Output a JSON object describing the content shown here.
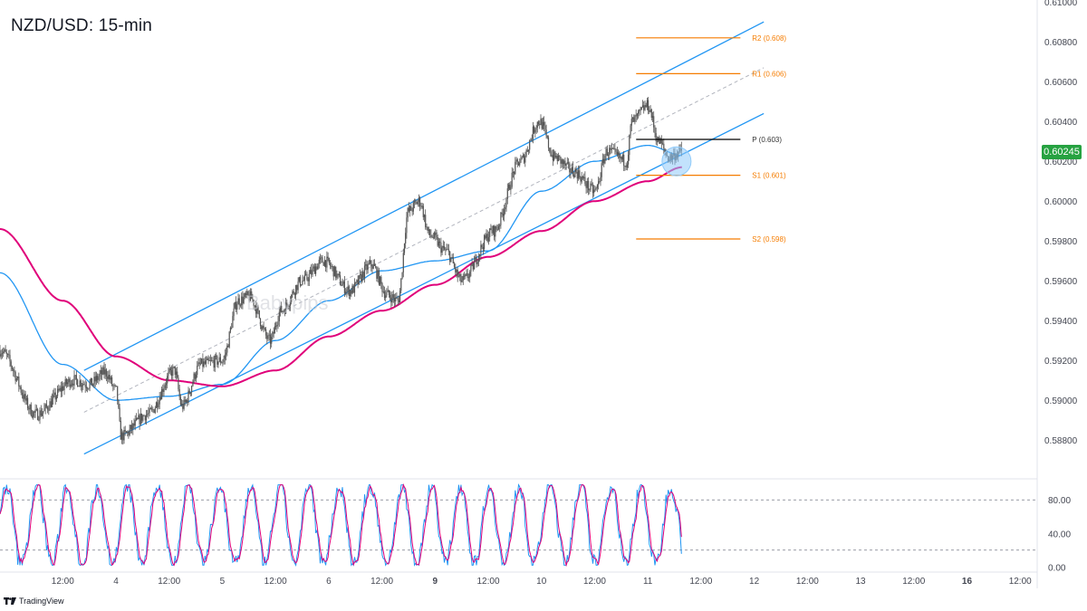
{
  "title": "NZD/USD: 15-min",
  "watermark": "Babypips",
  "platform": "TradingView",
  "current_price_label": "0.60245",
  "colors": {
    "candles": "#555555",
    "ema_fast": "#2196f3",
    "ema_slow": "#e0007a",
    "channel": "#2196f3",
    "pivot": "#000000",
    "sr": "#f57c00",
    "stoch_k": "#2196f3",
    "stoch_d": "#e0007a",
    "price_tag": "#26a241",
    "highlight": "#90caf9"
  },
  "chart_data": [
    {
      "type": "candlestick",
      "title": "NZD/USD: 15-min",
      "x_ticks": [
        {
          "t": 0.5,
          "label": "12:00"
        },
        {
          "t": 1,
          "label": "4"
        },
        {
          "t": 1.5,
          "label": "12:00"
        },
        {
          "t": 2,
          "label": "5"
        },
        {
          "t": 2.5,
          "label": "12:00"
        },
        {
          "t": 3,
          "label": "6"
        },
        {
          "t": 3.5,
          "label": "12:00"
        },
        {
          "t": 4,
          "label": "9"
        },
        {
          "t": 4.5,
          "label": "12:00"
        },
        {
          "t": 5,
          "label": "10"
        },
        {
          "t": 5.5,
          "label": "12:00"
        },
        {
          "t": 6,
          "label": "11"
        },
        {
          "t": 6.5,
          "label": "12:00"
        },
        {
          "t": 7,
          "label": "12"
        },
        {
          "t": 7.5,
          "label": "12:00"
        },
        {
          "t": 8,
          "label": "13"
        },
        {
          "t": 8.5,
          "label": "12:00"
        },
        {
          "t": 9,
          "label": "16"
        },
        {
          "t": 9.5,
          "label": "12:00"
        }
      ],
      "bold_day_labels": [
        "9",
        "16"
      ],
      "x_range": [
        -0.09,
        9.66
      ],
      "y_range": [
        0.5861,
        0.6101
      ],
      "y_ticks": [
        "0.61000",
        "0.60800",
        "0.60600",
        "0.60400",
        "0.60200",
        "0.60000",
        "0.59800",
        "0.59600",
        "0.59400",
        "0.59200",
        "0.59000",
        "0.58800"
      ],
      "current_price": 0.60245,
      "price_anchors": [
        [
          -0.09,
          0.5925
        ],
        [
          0.25,
          0.5893
        ],
        [
          0.6,
          0.591
        ],
        [
          0.75,
          0.5908
        ],
        [
          0.9,
          0.5914
        ],
        [
          1.0,
          0.5905
        ],
        [
          1.05,
          0.5882
        ],
        [
          1.3,
          0.5893
        ],
        [
          1.55,
          0.5915
        ],
        [
          1.62,
          0.5897
        ],
        [
          1.8,
          0.5918
        ],
        [
          2.0,
          0.592
        ],
        [
          2.15,
          0.595
        ],
        [
          2.25,
          0.5952
        ],
        [
          2.45,
          0.593
        ],
        [
          2.55,
          0.5945
        ],
        [
          2.75,
          0.596
        ],
        [
          2.95,
          0.597
        ],
        [
          3.2,
          0.5955
        ],
        [
          3.4,
          0.5968
        ],
        [
          3.55,
          0.5953
        ],
        [
          3.65,
          0.595
        ],
        [
          3.75,
          0.5995
        ],
        [
          3.85,
          0.6
        ],
        [
          3.95,
          0.5983
        ],
        [
          4.1,
          0.5975
        ],
        [
          4.25,
          0.596
        ],
        [
          4.55,
          0.5985
        ],
        [
          4.8,
          0.602
        ],
        [
          4.98,
          0.604
        ],
        [
          5.12,
          0.6022
        ],
        [
          5.3,
          0.6015
        ],
        [
          5.5,
          0.6005
        ],
        [
          5.62,
          0.6025
        ],
        [
          5.8,
          0.602
        ],
        [
          5.85,
          0.604
        ],
        [
          6.0,
          0.6048
        ],
        [
          6.1,
          0.603
        ],
        [
          6.2,
          0.6022
        ],
        [
          6.32,
          0.6025
        ]
      ],
      "channel": {
        "upper": [
          [
            0.7,
            0.5915
          ],
          [
            7.09,
            0.609
          ]
        ],
        "lower": [
          [
            0.7,
            0.5873
          ],
          [
            7.09,
            0.6044
          ]
        ],
        "middle": [
          [
            0.7,
            0.5894
          ],
          [
            7.09,
            0.6067
          ]
        ]
      },
      "ema_fast_anchors": [
        [
          -0.09,
          0.5964
        ],
        [
          0.5,
          0.5918
        ],
        [
          1.0,
          0.59
        ],
        [
          1.5,
          0.5902
        ],
        [
          2.0,
          0.5908
        ],
        [
          2.5,
          0.593
        ],
        [
          3.0,
          0.595
        ],
        [
          3.5,
          0.5965
        ],
        [
          4.0,
          0.597
        ],
        [
          4.5,
          0.5975
        ],
        [
          5.0,
          0.6005
        ],
        [
          5.5,
          0.602
        ],
        [
          6.0,
          0.6028
        ],
        [
          6.32,
          0.6023
        ]
      ],
      "ema_slow_anchors": [
        [
          -0.09,
          0.5986
        ],
        [
          0.5,
          0.595
        ],
        [
          1.0,
          0.5922
        ],
        [
          1.5,
          0.591
        ],
        [
          2.0,
          0.5907
        ],
        [
          2.5,
          0.5915
        ],
        [
          3.0,
          0.5932
        ],
        [
          3.5,
          0.5945
        ],
        [
          4.0,
          0.5958
        ],
        [
          4.5,
          0.5972
        ],
        [
          5.0,
          0.5985
        ],
        [
          5.5,
          0.6
        ],
        [
          6.0,
          0.601
        ],
        [
          6.32,
          0.6017
        ]
      ],
      "pivots": [
        {
          "label": "R2 (0.608)",
          "value": 0.6082,
          "kind": "sr"
        },
        {
          "label": "R1 (0.606)",
          "value": 0.6064,
          "kind": "sr"
        },
        {
          "label": "P (0.603)",
          "value": 0.6031,
          "kind": "pivot"
        },
        {
          "label": "S1 (0.601)",
          "value": 0.6013,
          "kind": "sr"
        },
        {
          "label": "S2 (0.598)",
          "value": 0.5981,
          "kind": "sr"
        }
      ],
      "pivot_range_t": [
        5.89,
        6.87
      ],
      "highlight": {
        "t": 6.27,
        "value": 0.602
      }
    },
    {
      "type": "line",
      "indicator": "stochastic",
      "y_range": [
        -4,
        104
      ],
      "y_ticks": [
        "80.00",
        "40.00",
        "0.00"
      ],
      "levels": [
        80,
        20
      ],
      "series_k": "stochastic %K",
      "series_d": "stochastic %D"
    }
  ]
}
